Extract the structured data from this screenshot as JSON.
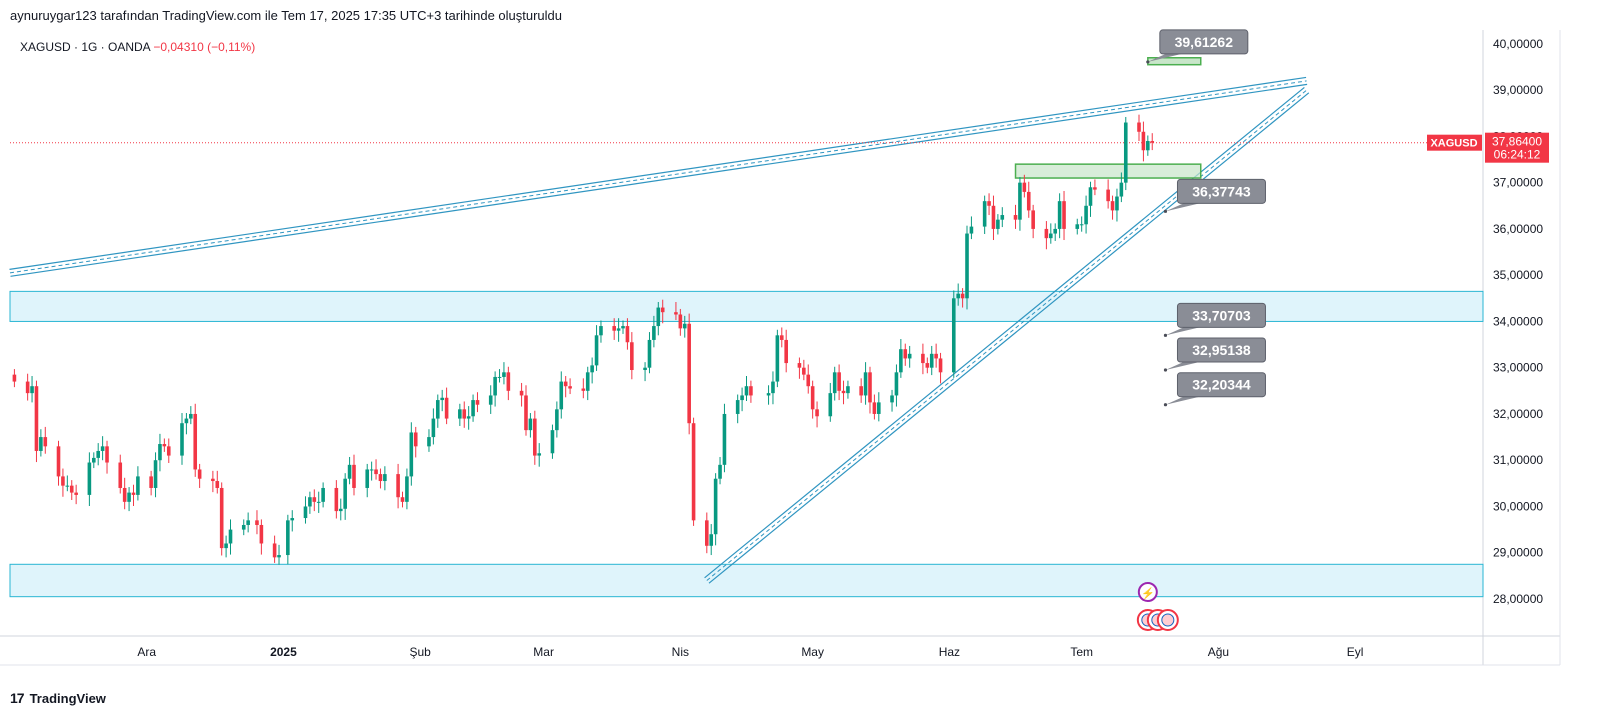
{
  "header": {
    "caption": "aynuruygar123 tarafından TradingView.com ile Tem 17, 2025 17:35 UTC+3 tarihinde oluşturuldu"
  },
  "symbol_line": {
    "text": "XAGUSD · 1G · OANDA",
    "change": "−0,04310 (−0,11%)"
  },
  "footer": {
    "brand": "TradingView",
    "logo_icon": "tradingview-logo-icon"
  },
  "colors": {
    "up": "#089981",
    "down": "#f23645",
    "trend": "#2f95c1",
    "zone_fill": "#dff4fb",
    "zone_line": "#29b6d3",
    "green_box": "#4caf50",
    "label_bg": "#8a8d96",
    "price_tag": "#f23645"
  },
  "chart_data": {
    "type": "candlestick",
    "symbol": "XAGUSD",
    "ylim": [
      27.2,
      40.3
    ],
    "x_range": [
      "2024-10-31",
      "2025-09-30"
    ],
    "y_ticks": [
      "28,00000",
      "29,00000",
      "30,00000",
      "31,00000",
      "32,00000",
      "33,00000",
      "34,00000",
      "35,00000",
      "36,00000",
      "37,00000",
      "38,00000",
      "39,00000",
      "40,00000"
    ],
    "x_ticks": [
      {
        "label": "Ara",
        "date": "2024-12-01"
      },
      {
        "label": "2025",
        "date": "2025-01-01",
        "bold": true
      },
      {
        "label": "Şub",
        "date": "2025-02-01"
      },
      {
        "label": "Mar",
        "date": "2025-03-01"
      },
      {
        "label": "Nis",
        "date": "2025-04-01"
      },
      {
        "label": "May",
        "date": "2025-05-01"
      },
      {
        "label": "Haz",
        "date": "2025-06-01"
      },
      {
        "label": "Tem",
        "date": "2025-07-01"
      },
      {
        "label": "Ağu",
        "date": "2025-08-01"
      },
      {
        "label": "Eyl",
        "date": "2025-09-01"
      }
    ],
    "last_price": {
      "label": "XAGUSD",
      "value": "37,86400",
      "countdown": "06:24:12"
    },
    "closes": [
      [
        "2024-11-01",
        32.7
      ],
      [
        "2024-11-04",
        32.45
      ],
      [
        "2024-11-05",
        32.6
      ],
      [
        "2024-11-06",
        31.2
      ],
      [
        "2024-11-07",
        31.5
      ],
      [
        "2024-11-08",
        31.3
      ],
      [
        "2024-11-11",
        30.65
      ],
      [
        "2024-11-12",
        30.45
      ],
      [
        "2024-11-13",
        30.45
      ],
      [
        "2024-11-14",
        30.3
      ],
      [
        "2024-11-15",
        30.25
      ],
      [
        "2024-11-18",
        30.95
      ],
      [
        "2024-11-19",
        31.05
      ],
      [
        "2024-11-20",
        31.2
      ],
      [
        "2024-11-21",
        31.3
      ],
      [
        "2024-11-22",
        30.95
      ],
      [
        "2024-11-25",
        30.4
      ],
      [
        "2024-11-26",
        30.1
      ],
      [
        "2024-11-27",
        30.3
      ],
      [
        "2024-11-28",
        30.25
      ],
      [
        "2024-11-29",
        30.65
      ],
      [
        "2024-12-02",
        30.4
      ],
      [
        "2024-12-03",
        31.0
      ],
      [
        "2024-12-04",
        31.35
      ],
      [
        "2024-12-05",
        31.3
      ],
      [
        "2024-12-06",
        31.1
      ],
      [
        "2024-12-09",
        31.8
      ],
      [
        "2024-12-10",
        31.9
      ],
      [
        "2024-12-11",
        32.0
      ],
      [
        "2024-12-12",
        30.8
      ],
      [
        "2024-12-13",
        30.6
      ],
      [
        "2024-12-16",
        30.55
      ],
      [
        "2024-12-17",
        30.4
      ],
      [
        "2024-12-18",
        29.1
      ],
      [
        "2024-12-19",
        29.2
      ],
      [
        "2024-12-20",
        29.5
      ],
      [
        "2024-12-23",
        29.6
      ],
      [
        "2024-12-24",
        29.7
      ],
      [
        "2024-12-26",
        29.6
      ],
      [
        "2024-12-27",
        29.2
      ],
      [
        "2024-12-30",
        28.9
      ],
      [
        "2024-12-31",
        28.95
      ],
      [
        "2025-01-02",
        29.7
      ],
      [
        "2025-01-03",
        29.75
      ],
      [
        "2025-01-06",
        30.0
      ],
      [
        "2025-01-07",
        30.2
      ],
      [
        "2025-01-08",
        30.1
      ],
      [
        "2025-01-09",
        30.1
      ],
      [
        "2025-01-10",
        30.4
      ],
      [
        "2025-01-13",
        29.9
      ],
      [
        "2025-01-14",
        29.95
      ],
      [
        "2025-01-15",
        30.6
      ],
      [
        "2025-01-16",
        30.9
      ],
      [
        "2025-01-17",
        30.4
      ],
      [
        "2025-01-20",
        30.8
      ],
      [
        "2025-01-21",
        30.8
      ],
      [
        "2025-01-22",
        30.7
      ],
      [
        "2025-01-23",
        30.55
      ],
      [
        "2025-01-24",
        30.7
      ],
      [
        "2025-01-27",
        30.2
      ],
      [
        "2025-01-28",
        30.1
      ],
      [
        "2025-01-29",
        30.65
      ],
      [
        "2025-01-30",
        31.6
      ],
      [
        "2025-01-31",
        31.3
      ],
      [
        "2025-02-03",
        31.5
      ],
      [
        "2025-02-04",
        31.9
      ],
      [
        "2025-02-05",
        32.3
      ],
      [
        "2025-02-06",
        32.35
      ],
      [
        "2025-02-07",
        31.9
      ],
      [
        "2025-02-10",
        32.1
      ],
      [
        "2025-02-11",
        31.9
      ],
      [
        "2025-02-12",
        31.95
      ],
      [
        "2025-02-13",
        32.3
      ],
      [
        "2025-02-14",
        32.2
      ],
      [
        "2025-02-17",
        32.4
      ],
      [
        "2025-02-18",
        32.8
      ],
      [
        "2025-02-19",
        32.8
      ],
      [
        "2025-02-20",
        32.9
      ],
      [
        "2025-02-21",
        32.5
      ],
      [
        "2025-02-24",
        32.4
      ],
      [
        "2025-02-25",
        31.65
      ],
      [
        "2025-02-26",
        31.9
      ],
      [
        "2025-02-27",
        31.1
      ],
      [
        "2025-02-28",
        31.15
      ],
      [
        "2025-03-03",
        31.65
      ],
      [
        "2025-03-04",
        32.1
      ],
      [
        "2025-03-05",
        32.7
      ],
      [
        "2025-03-06",
        32.6
      ],
      [
        "2025-03-07",
        32.55
      ],
      [
        "2025-03-10",
        32.5
      ],
      [
        "2025-03-11",
        32.9
      ],
      [
        "2025-03-12",
        33.05
      ],
      [
        "2025-03-13",
        33.7
      ],
      [
        "2025-03-14",
        33.9
      ],
      [
        "2025-03-17",
        33.8
      ],
      [
        "2025-03-18",
        33.85
      ],
      [
        "2025-03-19",
        33.9
      ],
      [
        "2025-03-20",
        33.55
      ],
      [
        "2025-03-21",
        32.95
      ],
      [
        "2025-03-24",
        33.0
      ],
      [
        "2025-03-25",
        33.6
      ],
      [
        "2025-03-26",
        33.9
      ],
      [
        "2025-03-27",
        34.3
      ],
      [
        "2025-03-28",
        34.2
      ],
      [
        "2025-03-31",
        34.15
      ],
      [
        "2025-04-01",
        33.85
      ],
      [
        "2025-04-02",
        33.95
      ],
      [
        "2025-04-03",
        31.8
      ],
      [
        "2025-04-04",
        29.7
      ],
      [
        "2025-04-07",
        29.15
      ],
      [
        "2025-04-08",
        29.4
      ],
      [
        "2025-04-09",
        30.6
      ],
      [
        "2025-04-10",
        30.9
      ],
      [
        "2025-04-11",
        32.0
      ],
      [
        "2025-04-14",
        32.3
      ],
      [
        "2025-04-15",
        32.4
      ],
      [
        "2025-04-16",
        32.6
      ],
      [
        "2025-04-17",
        32.4
      ],
      [
        "2025-04-21",
        32.45
      ],
      [
        "2025-04-22",
        32.7
      ],
      [
        "2025-04-23",
        33.7
      ],
      [
        "2025-04-24",
        33.6
      ],
      [
        "2025-04-25",
        33.1
      ],
      [
        "2025-04-28",
        33.0
      ],
      [
        "2025-04-29",
        32.85
      ],
      [
        "2025-04-30",
        32.6
      ],
      [
        "2025-05-01",
        32.1
      ],
      [
        "2025-05-02",
        31.95
      ],
      [
        "2025-05-05",
        32.45
      ],
      [
        "2025-05-06",
        32.9
      ],
      [
        "2025-05-07",
        32.5
      ],
      [
        "2025-05-08",
        32.45
      ],
      [
        "2025-05-09",
        32.6
      ],
      [
        "2025-05-12",
        32.4
      ],
      [
        "2025-05-13",
        32.9
      ],
      [
        "2025-05-14",
        32.25
      ],
      [
        "2025-05-15",
        32.0
      ],
      [
        "2025-05-16",
        32.25
      ],
      [
        "2025-05-19",
        32.4
      ],
      [
        "2025-05-20",
        32.9
      ],
      [
        "2025-05-21",
        33.4
      ],
      [
        "2025-05-22",
        33.2
      ],
      [
        "2025-05-23",
        33.3
      ],
      [
        "2025-05-26",
        33.1
      ],
      [
        "2025-05-27",
        33.0
      ],
      [
        "2025-05-28",
        33.3
      ],
      [
        "2025-05-29",
        33.2
      ],
      [
        "2025-05-30",
        32.9
      ],
      [
        "2025-06-02",
        34.5
      ],
      [
        "2025-06-03",
        34.6
      ],
      [
        "2025-06-04",
        34.5
      ],
      [
        "2025-06-05",
        35.9
      ],
      [
        "2025-06-06",
        36.05
      ],
      [
        "2025-06-09",
        36.6
      ],
      [
        "2025-06-10",
        36.5
      ],
      [
        "2025-06-11",
        36.0
      ],
      [
        "2025-06-12",
        36.2
      ],
      [
        "2025-06-13",
        36.3
      ],
      [
        "2025-06-16",
        36.2
      ],
      [
        "2025-06-17",
        37.0
      ],
      [
        "2025-06-18",
        36.8
      ],
      [
        "2025-06-19",
        36.4
      ],
      [
        "2025-06-20",
        36.0
      ],
      [
        "2025-06-23",
        35.8
      ],
      [
        "2025-06-24",
        35.9
      ],
      [
        "2025-06-25",
        36.0
      ],
      [
        "2025-06-26",
        36.6
      ],
      [
        "2025-06-27",
        36.0
      ],
      [
        "2025-06-30",
        36.1
      ],
      [
        "2025-07-01",
        36.1
      ],
      [
        "2025-07-02",
        36.5
      ],
      [
        "2025-07-03",
        36.9
      ],
      [
        "2025-07-04",
        36.85
      ],
      [
        "2025-07-07",
        36.6
      ],
      [
        "2025-07-08",
        36.4
      ],
      [
        "2025-07-09",
        36.7
      ],
      [
        "2025-07-10",
        37.0
      ],
      [
        "2025-07-11",
        38.3
      ],
      [
        "2025-07-14",
        38.1
      ],
      [
        "2025-07-15",
        37.7
      ],
      [
        "2025-07-16",
        37.9
      ],
      [
        "2025-07-17",
        37.864
      ]
    ],
    "trendlines": [
      {
        "name": "upper-channel",
        "from": [
          "2024-10-31",
          35.05
        ],
        "to": [
          "2025-08-21",
          39.2
        ]
      },
      {
        "name": "rising-support",
        "from": [
          "2025-04-07",
          28.4
        ],
        "to": [
          "2025-08-21",
          39.0
        ]
      }
    ],
    "zones": [
      {
        "from": 34.0,
        "to": 34.65
      },
      {
        "from": 28.05,
        "to": 28.75
      }
    ],
    "green_box": {
      "from": "2025-06-16",
      "to": "2025-07-28",
      "y_low": 37.1,
      "y_high": 37.4
    },
    "small_box": {
      "from": "2025-07-16",
      "to": "2025-07-28",
      "y_low": 39.55,
      "y_high": 39.7
    },
    "callouts": [
      {
        "label": "39,61262",
        "anchor": [
          "2025-07-16",
          39.61
        ]
      },
      {
        "label": "36,37743",
        "anchor": [
          "2025-07-20",
          36.38
        ]
      },
      {
        "label": "33,70703",
        "anchor": [
          "2025-07-20",
          33.7
        ]
      },
      {
        "label": "32,95138",
        "anchor": [
          "2025-07-20",
          32.95
        ]
      },
      {
        "label": "32,20344",
        "anchor": [
          "2025-07-20",
          32.2
        ]
      }
    ]
  }
}
